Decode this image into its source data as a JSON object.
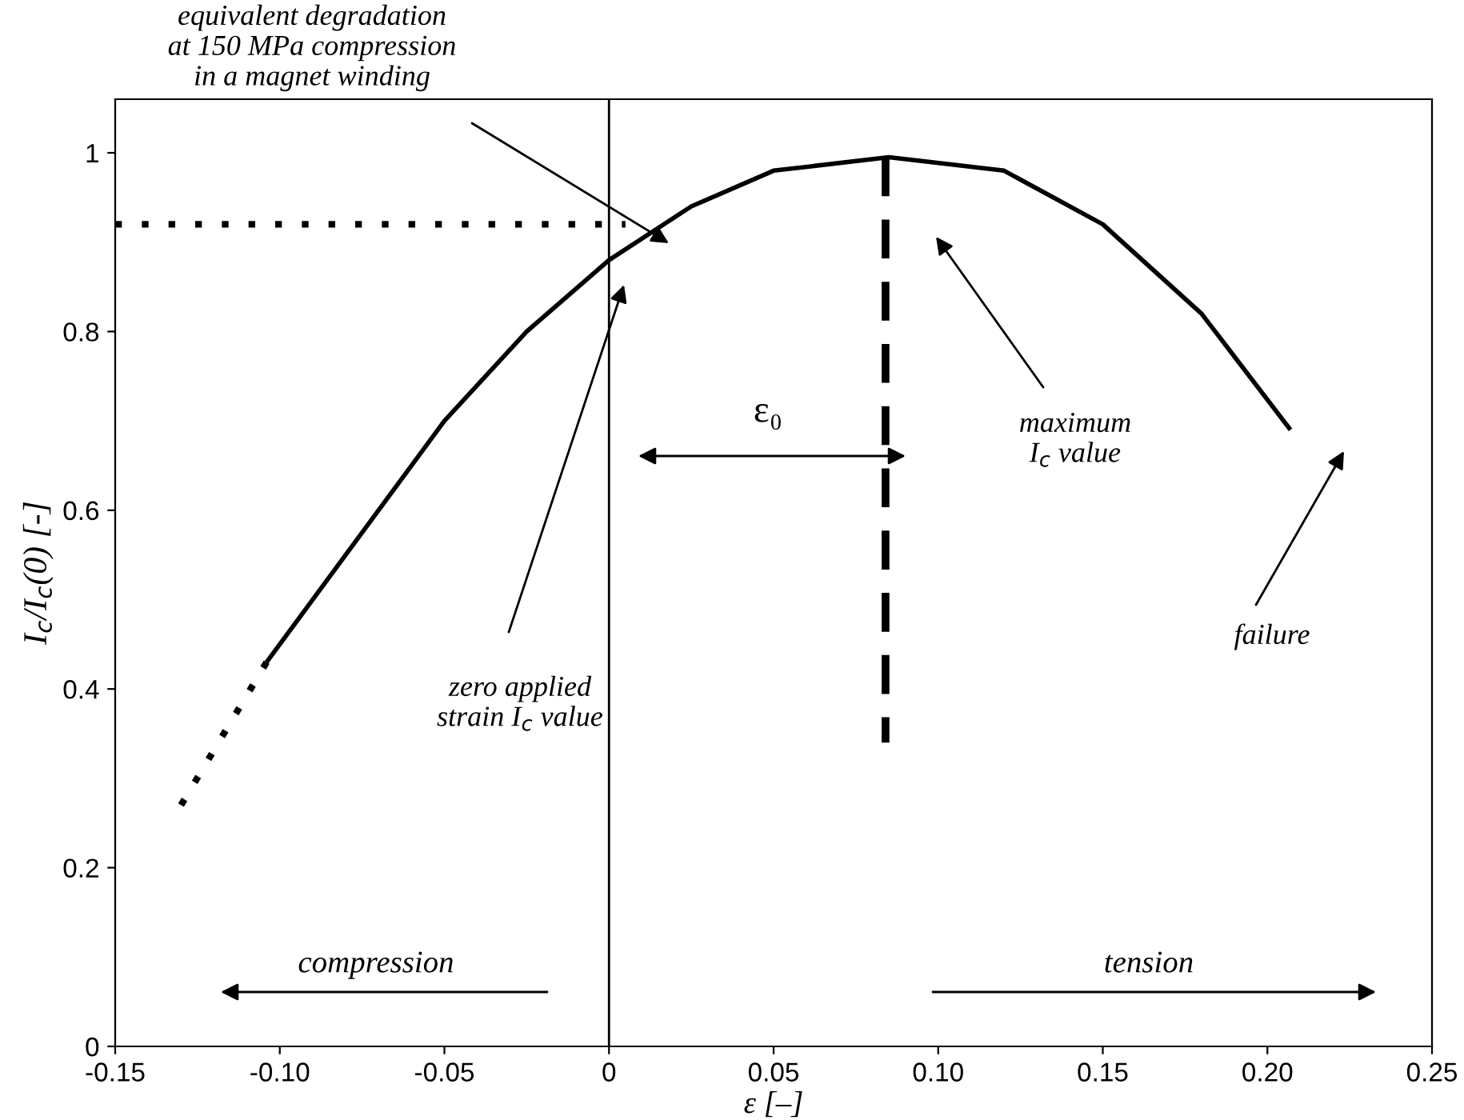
{
  "chart_data": {
    "type": "line",
    "xlabel": "ε [–]",
    "ylabel": "I$_{c}$/I$_{c}$(0) [-]",
    "xlim": [
      -0.15,
      0.25
    ],
    "ylim": [
      0,
      1.06
    ],
    "xticks": [
      -0.15,
      {
        "value": -0.1,
        "label": "-0.10"
      },
      -0.05,
      0,
      0.05,
      {
        "value": 0.1,
        "label": "0.10"
      },
      {
        "value": 0.15,
        "label": "0.15"
      },
      {
        "value": 0.2,
        "label": "0.20"
      },
      0.25
    ],
    "yticks": [
      0,
      0.2,
      0.4,
      0.6,
      0.8,
      1
    ],
    "grid": false,
    "series": [
      {
        "color": "#000000",
        "line_style": "solid",
        "x": [
          -0.104,
          -0.08,
          -0.05,
          -0.025,
          0,
          0.025,
          0.05,
          0.085,
          0.12,
          0.15,
          0.18,
          0.207
        ],
        "values": [
          0.43,
          0.55,
          0.7,
          0.8,
          0.88,
          0.94,
          0.98,
          0.995,
          0.98,
          0.92,
          0.82,
          0.69
        ]
      },
      {
        "color": "#000000",
        "line_style": "dotted",
        "x": [
          -0.13,
          -0.104
        ],
        "values": [
          0.27,
          0.43
        ]
      },
      {
        "color": "#000000",
        "line_style": "dotted",
        "x": [
          -0.15,
          0.005
        ],
        "values": [
          0.92,
          0.92
        ]
      },
      {
        "color": "#000000",
        "line_style": "dashed",
        "x": [
          0.084,
          0.084
        ],
        "values": [
          0.995,
          0.34
        ]
      }
    ],
    "ref_lines": [
      {
        "axis": "x",
        "value": 0,
        "color": "#000000"
      }
    ],
    "annotations": [
      "equivalent degradation\nat 150 MPa compression\nin a magnet winding",
      "zero applied\nstrain I$_{c}$ value",
      "maximum\nI$_{c}$ value",
      "failure",
      "ε₀",
      "compression",
      "tension"
    ]
  }
}
